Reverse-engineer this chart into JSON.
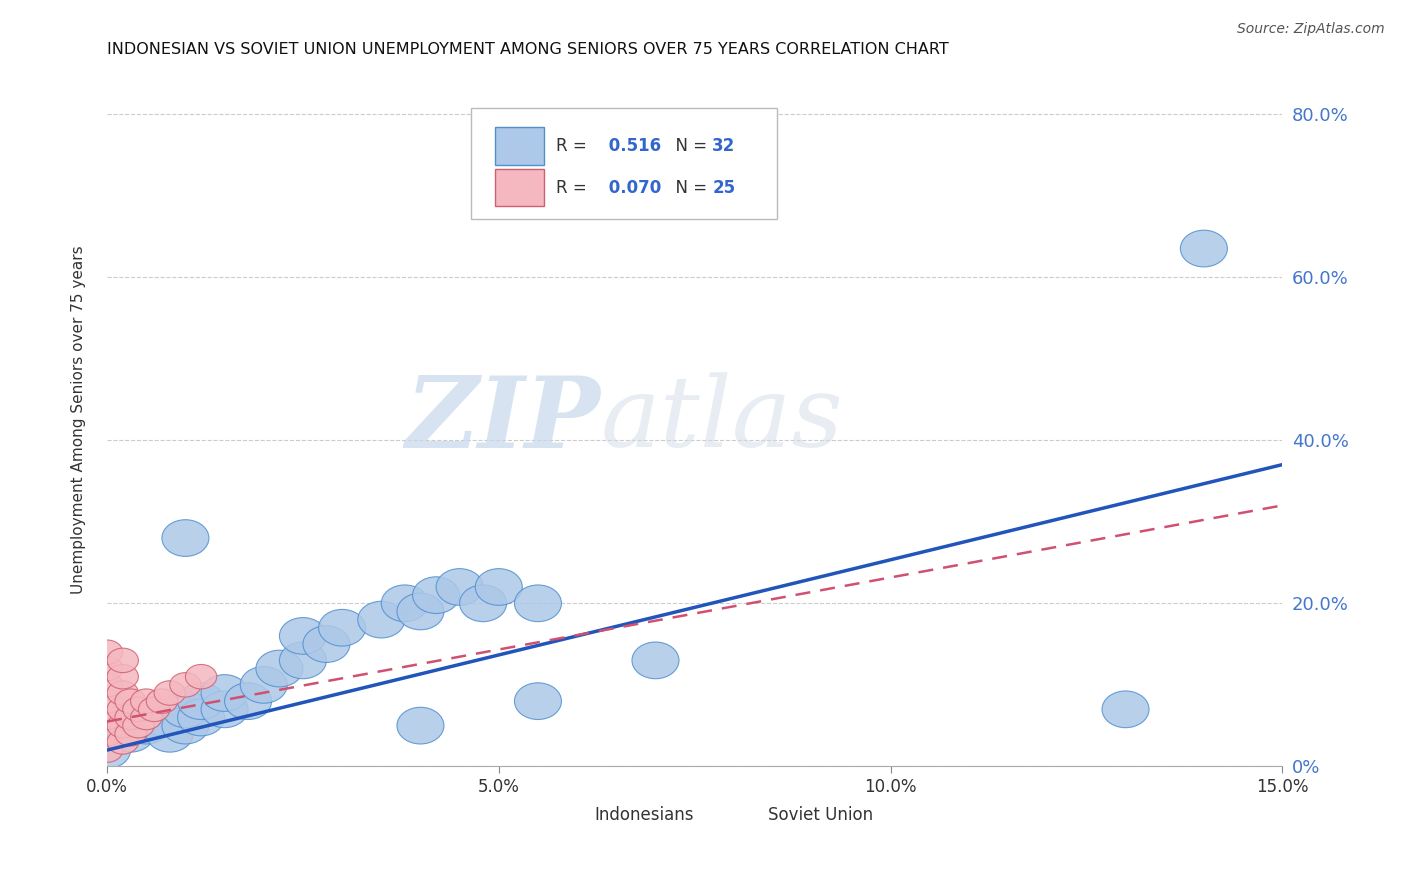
{
  "title": "INDONESIAN VS SOVIET UNION UNEMPLOYMENT AMONG SENIORS OVER 75 YEARS CORRELATION CHART",
  "source_text": "Source: ZipAtlas.com",
  "ylabel": "Unemployment Among Seniors over 75 years",
  "xlim": [
    0.0,
    0.15
  ],
  "ylim": [
    0.0,
    0.85
  ],
  "xticks": [
    0.0,
    0.05,
    0.1,
    0.15
  ],
  "xtick_labels": [
    "0.0%",
    "5.0%",
    "10.0%",
    "15.0%"
  ],
  "yticks": [
    0.0,
    0.2,
    0.4,
    0.6,
    0.8
  ],
  "ytick_labels": [
    "0%",
    "20.0%",
    "40.0%",
    "60.0%",
    "80.0%"
  ],
  "watermark_zip": "ZIP",
  "watermark_atlas": "atlas",
  "indonesian_color": "#adc8e8",
  "indonesian_edge_color": "#5090d0",
  "soviet_color": "#f5b8c0",
  "soviet_edge_color": "#d06070",
  "indonesian_line_color": "#2255bb",
  "soviet_line_color": "#d05070",
  "R_indonesian": 0.516,
  "N_indonesian": 32,
  "R_soviet": 0.07,
  "N_soviet": 25,
  "indonesian_points": [
    [
      0.0,
      0.02
    ],
    [
      0.003,
      0.04
    ],
    [
      0.005,
      0.05
    ],
    [
      0.007,
      0.06
    ],
    [
      0.008,
      0.04
    ],
    [
      0.01,
      0.05
    ],
    [
      0.01,
      0.07
    ],
    [
      0.012,
      0.06
    ],
    [
      0.012,
      0.08
    ],
    [
      0.015,
      0.07
    ],
    [
      0.015,
      0.09
    ],
    [
      0.018,
      0.08
    ],
    [
      0.02,
      0.1
    ],
    [
      0.022,
      0.12
    ],
    [
      0.025,
      0.13
    ],
    [
      0.025,
      0.16
    ],
    [
      0.028,
      0.15
    ],
    [
      0.03,
      0.17
    ],
    [
      0.035,
      0.18
    ],
    [
      0.038,
      0.2
    ],
    [
      0.04,
      0.19
    ],
    [
      0.042,
      0.21
    ],
    [
      0.045,
      0.22
    ],
    [
      0.048,
      0.2
    ],
    [
      0.05,
      0.22
    ],
    [
      0.055,
      0.2
    ],
    [
      0.01,
      0.28
    ],
    [
      0.04,
      0.05
    ],
    [
      0.055,
      0.08
    ],
    [
      0.07,
      0.13
    ],
    [
      0.13,
      0.07
    ],
    [
      0.14,
      0.635
    ]
  ],
  "soviet_points": [
    [
      0.0,
      0.02
    ],
    [
      0.0,
      0.04
    ],
    [
      0.0,
      0.06
    ],
    [
      0.0,
      0.08
    ],
    [
      0.0,
      0.1
    ],
    [
      0.0,
      0.12
    ],
    [
      0.0,
      0.14
    ],
    [
      0.002,
      0.03
    ],
    [
      0.002,
      0.05
    ],
    [
      0.002,
      0.07
    ],
    [
      0.002,
      0.09
    ],
    [
      0.002,
      0.11
    ],
    [
      0.002,
      0.13
    ],
    [
      0.003,
      0.04
    ],
    [
      0.003,
      0.06
    ],
    [
      0.003,
      0.08
    ],
    [
      0.004,
      0.05
    ],
    [
      0.004,
      0.07
    ],
    [
      0.005,
      0.06
    ],
    [
      0.005,
      0.08
    ],
    [
      0.006,
      0.07
    ],
    [
      0.007,
      0.08
    ],
    [
      0.008,
      0.09
    ],
    [
      0.01,
      0.1
    ],
    [
      0.012,
      0.11
    ]
  ],
  "ind_line_x0": 0.0,
  "ind_line_y0": 0.02,
  "ind_line_x1": 0.15,
  "ind_line_y1": 0.37,
  "sov_line_x0": 0.0,
  "sov_line_y0": 0.055,
  "sov_line_x1": 0.15,
  "sov_line_y1": 0.32
}
